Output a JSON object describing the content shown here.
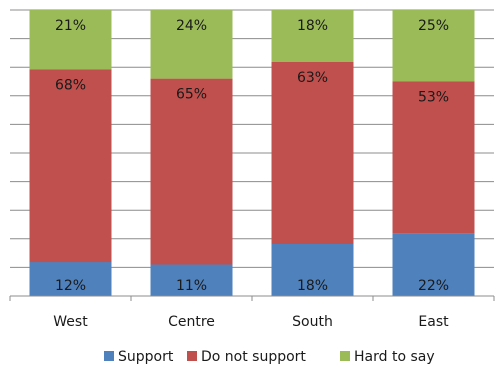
{
  "chart_data": {
    "type": "bar",
    "stacked": true,
    "normalized": true,
    "categories": [
      "West",
      "Centre",
      "South",
      "East"
    ],
    "series": [
      {
        "name": "Support",
        "values": [
          12,
          11,
          18,
          22
        ],
        "labels": [
          "12%",
          "11%",
          "18%",
          "22%"
        ],
        "color": "#4f81bd"
      },
      {
        "name": "Do not support",
        "values": [
          68,
          65,
          63,
          53
        ],
        "labels": [
          "68%",
          "65%",
          "63%",
          "53%"
        ],
        "color": "#c0504d"
      },
      {
        "name": "Hard to say",
        "values": [
          21,
          24,
          18,
          25
        ],
        "labels": [
          "21%",
          "24%",
          "18%",
          "25%"
        ],
        "color": "#9bbb59"
      }
    ],
    "ylim": [
      0,
      100
    ],
    "grid": true,
    "legend_position": "bottom"
  }
}
